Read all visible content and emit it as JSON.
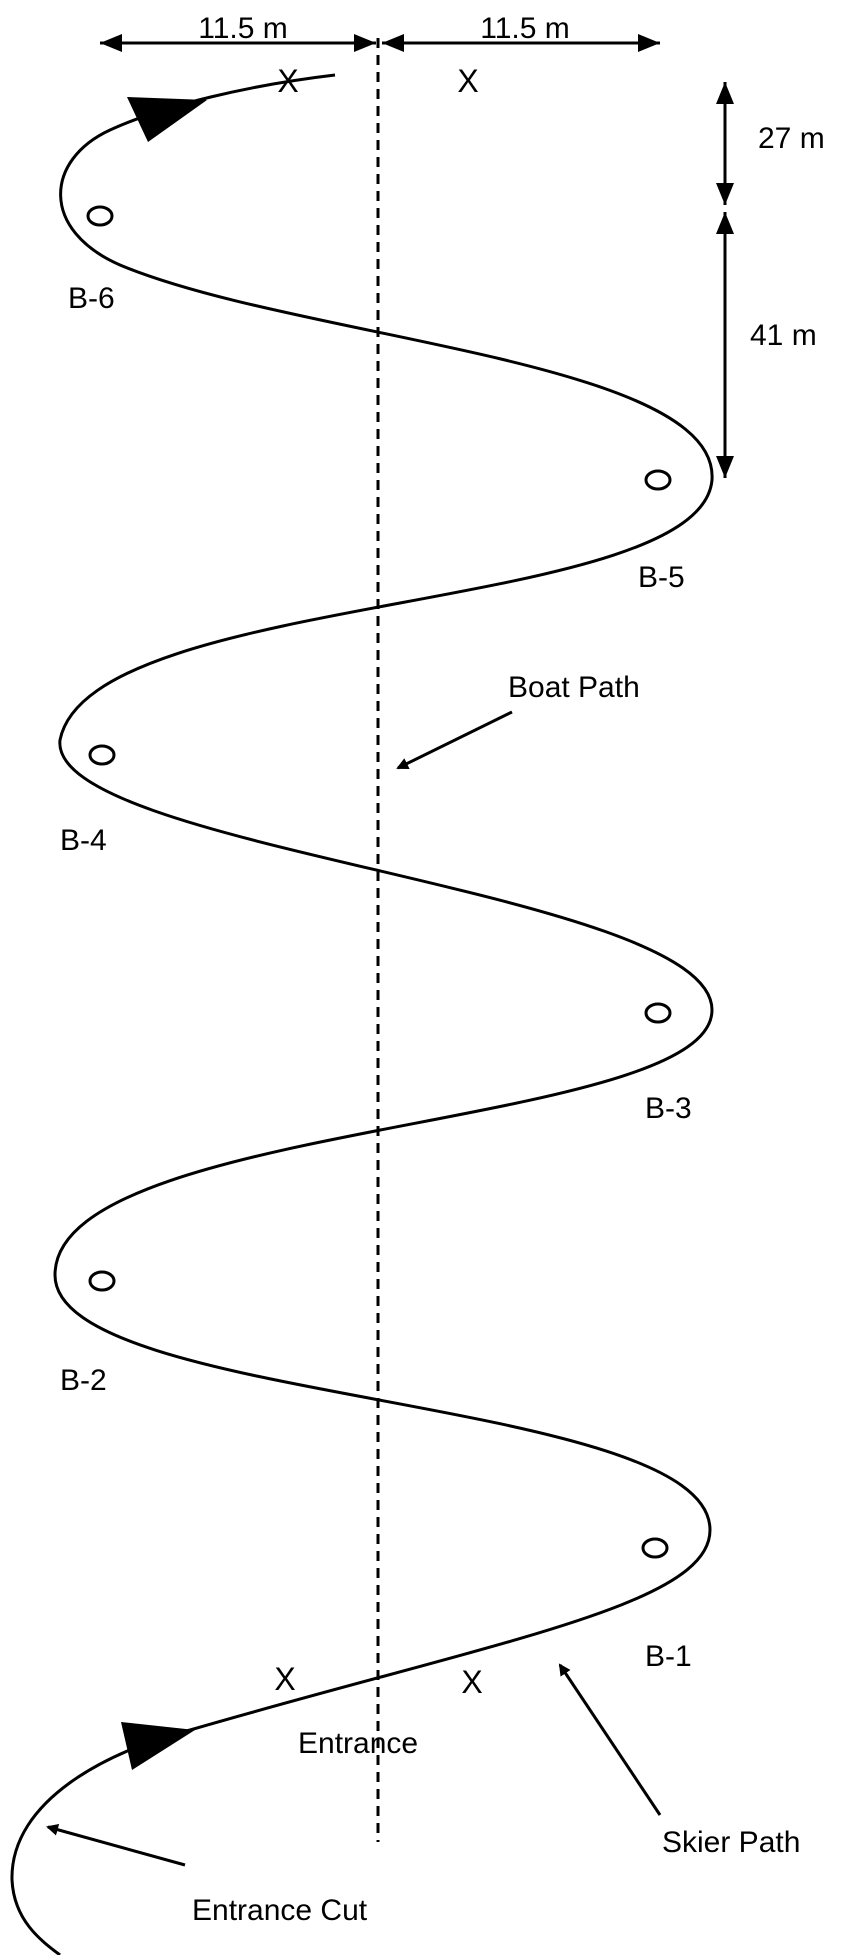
{
  "dimensions": {
    "left_width": "11.5 m",
    "right_width": "11.5 m",
    "gate_spacing": "27 m",
    "buoy_spacing": "41 m"
  },
  "buoys": [
    "B-1",
    "B-2",
    "B-3",
    "B-4",
    "B-5",
    "B-6"
  ],
  "gate_marker": "X",
  "labels": {
    "boat_path": "Boat Path",
    "skier_path": "Skier Path",
    "entrance": "Entrance",
    "entrance_cut": "Entrance Cut"
  },
  "colors": {
    "line": "#000000",
    "background": "#ffffff"
  }
}
